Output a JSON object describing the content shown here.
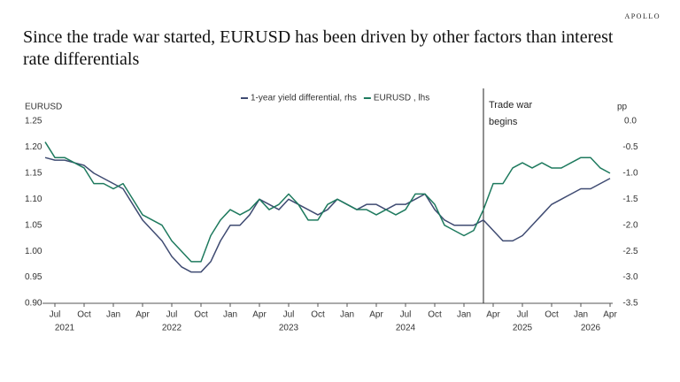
{
  "brand": "APOLLO",
  "chart_data": {
    "type": "line",
    "title": "Since the trade war started, EURUSD has been driven by other factors than interest rate differentials",
    "y_label": "EURUSD",
    "y2_label": "pp",
    "annotation": {
      "x": "2025-03",
      "label": "Trade war begins"
    },
    "x": [
      "2021-06",
      "2021-07",
      "2021-08",
      "2021-09",
      "2021-10",
      "2021-11",
      "2021-12",
      "2022-01",
      "2022-02",
      "2022-03",
      "2022-04",
      "2022-05",
      "2022-06",
      "2022-07",
      "2022-08",
      "2022-09",
      "2022-10",
      "2022-11",
      "2022-12",
      "2023-01",
      "2023-02",
      "2023-03",
      "2023-04",
      "2023-05",
      "2023-06",
      "2023-07",
      "2023-08",
      "2023-09",
      "2023-10",
      "2023-11",
      "2023-12",
      "2024-01",
      "2024-02",
      "2024-03",
      "2024-04",
      "2024-05",
      "2024-06",
      "2024-07",
      "2024-08",
      "2024-09",
      "2024-10",
      "2024-11",
      "2024-12",
      "2025-01",
      "2025-02",
      "2025-03",
      "2025-04",
      "2025-05",
      "2025-06",
      "2025-07",
      "2025-08",
      "2025-09",
      "2025-10",
      "2025-11",
      "2025-12",
      "2026-01",
      "2026-02",
      "2026-03",
      "2026-04"
    ],
    "series": [
      {
        "name": "1-year yield differential, rhs",
        "color": "#3f4b72",
        "axis": "y2",
        "values": [
          -0.7,
          -0.75,
          -0.75,
          -0.8,
          -0.85,
          -1.0,
          -1.1,
          -1.2,
          -1.3,
          -1.6,
          -1.9,
          -2.1,
          -2.3,
          -2.6,
          -2.8,
          -2.9,
          -2.9,
          -2.7,
          -2.3,
          -2.0,
          -2.0,
          -1.8,
          -1.5,
          -1.6,
          -1.7,
          -1.5,
          -1.6,
          -1.7,
          -1.8,
          -1.7,
          -1.5,
          -1.6,
          -1.7,
          -1.6,
          -1.6,
          -1.7,
          -1.6,
          -1.6,
          -1.5,
          -1.4,
          -1.7,
          -1.9,
          -2.0,
          -2.0,
          -2.0,
          -1.9,
          -2.1,
          -2.3,
          -2.3,
          -2.2,
          -2.0,
          -1.8,
          -1.6,
          -1.5,
          -1.4,
          -1.3,
          -1.3,
          -1.2,
          -1.1
        ]
      },
      {
        "name": "EURUSD , lhs",
        "color": "#1e7a5e",
        "values": [
          1.21,
          1.18,
          1.18,
          1.17,
          1.16,
          1.13,
          1.13,
          1.12,
          1.13,
          1.1,
          1.07,
          1.06,
          1.05,
          1.02,
          1.0,
          0.98,
          0.98,
          1.03,
          1.06,
          1.08,
          1.07,
          1.08,
          1.1,
          1.08,
          1.09,
          1.11,
          1.09,
          1.06,
          1.06,
          1.09,
          1.1,
          1.09,
          1.08,
          1.08,
          1.07,
          1.08,
          1.07,
          1.08,
          1.11,
          1.11,
          1.09,
          1.05,
          1.04,
          1.03,
          1.04,
          1.08,
          1.13,
          1.13,
          1.16,
          1.17,
          1.16,
          1.17,
          1.16,
          1.16,
          1.17,
          1.18,
          1.18,
          1.16,
          1.15
        ]
      }
    ],
    "ylim": [
      0.9,
      1.25
    ],
    "yticks": [
      {
        "value": 0.9,
        "label": "0.90"
      },
      {
        "value": 0.95,
        "label": "0.95"
      },
      {
        "value": 1.0,
        "label": "1.00"
      },
      {
        "value": 1.05,
        "label": "1.05"
      },
      {
        "value": 1.1,
        "label": "1.10"
      },
      {
        "value": 1.15,
        "label": "1.15"
      },
      {
        "value": 1.2,
        "label": "1.20"
      },
      {
        "value": 1.25,
        "label": "1.25"
      }
    ],
    "y2lim": [
      -3.5,
      0
    ],
    "y2ticks": [
      {
        "value": 0,
        "label": "0.0"
      },
      {
        "value": -0.5,
        "label": "-0.5"
      },
      {
        "value": -1,
        "label": "-1.0"
      },
      {
        "value": -1.5,
        "label": "-1.5"
      },
      {
        "value": -2,
        "label": "-2.0"
      },
      {
        "value": -2.5,
        "label": "-2.5"
      },
      {
        "value": -3,
        "label": "-3.0"
      },
      {
        "value": -3.5,
        "label": "-3.5"
      }
    ],
    "xticks": [
      {
        "value": "2021-07",
        "label": "Jul"
      },
      {
        "value": "2021-10",
        "label": "Oct"
      },
      {
        "value": "2022-01",
        "label": "Jan"
      },
      {
        "value": "2022-04",
        "label": "Apr"
      },
      {
        "value": "2022-07",
        "label": "Jul"
      },
      {
        "value": "2022-10",
        "label": "Oct"
      },
      {
        "value": "2023-01",
        "label": "Jan"
      },
      {
        "value": "2023-04",
        "label": "Apr"
      },
      {
        "value": "2023-07",
        "label": "Jul"
      },
      {
        "value": "2023-10",
        "label": "Oct"
      },
      {
        "value": "2024-01",
        "label": "Jan"
      },
      {
        "value": "2024-04",
        "label": "Apr"
      },
      {
        "value": "2024-07",
        "label": "Jul"
      },
      {
        "value": "2024-10",
        "label": "Oct"
      },
      {
        "value": "2025-01",
        "label": "Jan"
      },
      {
        "value": "2025-04",
        "label": "Apr"
      },
      {
        "value": "2025-07",
        "label": "Jul"
      },
      {
        "value": "2025-10",
        "label": "Oct"
      },
      {
        "value": "2026-01",
        "label": "Jan"
      },
      {
        "value": "2026-04",
        "label": "Apr"
      }
    ],
    "year_labels": [
      {
        "value": "2021-08",
        "label": "2021"
      },
      {
        "value": "2022-07",
        "label": "2022"
      },
      {
        "value": "2023-07",
        "label": "2023"
      },
      {
        "value": "2024-07",
        "label": "2024"
      },
      {
        "value": "2025-07",
        "label": "2025"
      },
      {
        "value": "2026-02",
        "label": "2026"
      }
    ]
  }
}
